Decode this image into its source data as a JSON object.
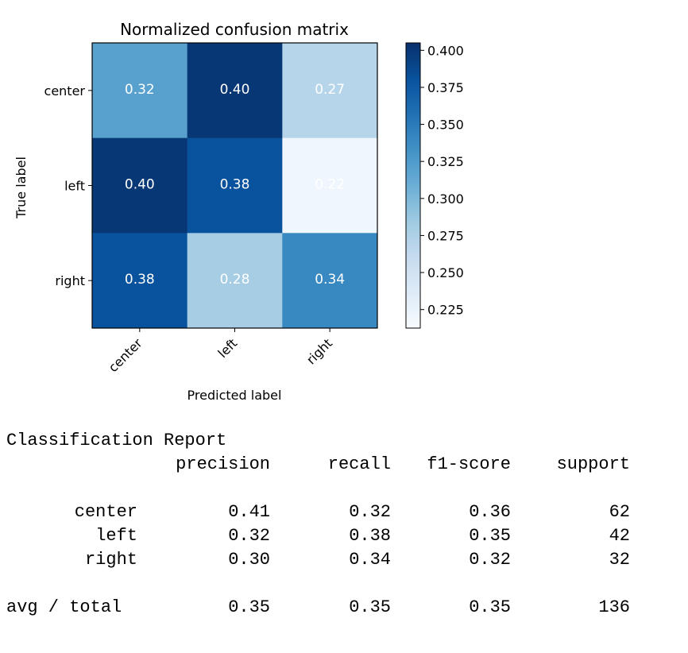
{
  "chart_data": {
    "type": "heatmap",
    "title": "Normalized confusion matrix",
    "xlabel": "Predicted label",
    "ylabel": "True label",
    "x_categories": [
      "center",
      "left",
      "right"
    ],
    "y_categories": [
      "center",
      "left",
      "right"
    ],
    "values": [
      [
        0.32,
        0.4,
        0.27
      ],
      [
        0.4,
        0.38,
        0.22
      ],
      [
        0.38,
        0.28,
        0.34
      ]
    ],
    "cell_labels": [
      [
        "0.32",
        "0.40",
        "0.27"
      ],
      [
        "0.40",
        "0.38",
        "0.22"
      ],
      [
        "0.38",
        "0.28",
        "0.34"
      ]
    ],
    "colormap": "Blues",
    "vmin": 0.2125,
    "vmax": 0.405,
    "colorbar_ticks": [
      "0.400",
      "0.375",
      "0.350",
      "0.325",
      "0.300",
      "0.275",
      "0.250",
      "0.225"
    ],
    "colorbar_tick_values": [
      0.4,
      0.375,
      0.35,
      0.325,
      0.3,
      0.275,
      0.25,
      0.225
    ],
    "grid": false
  },
  "report": {
    "title": "Classification Report",
    "headers": [
      "precision",
      "recall",
      "f1-score",
      "support"
    ],
    "rows": [
      {
        "label": "center",
        "precision": "0.41",
        "recall": "0.32",
        "f1": "0.36",
        "support": "62"
      },
      {
        "label": "left",
        "precision": "0.32",
        "recall": "0.38",
        "f1": "0.35",
        "support": "42"
      },
      {
        "label": "right",
        "precision": "0.30",
        "recall": "0.34",
        "f1": "0.32",
        "support": "32"
      }
    ],
    "total": {
      "label": "avg / total",
      "precision": "0.35",
      "recall": "0.35",
      "f1": "0.35",
      "support": "136"
    }
  }
}
